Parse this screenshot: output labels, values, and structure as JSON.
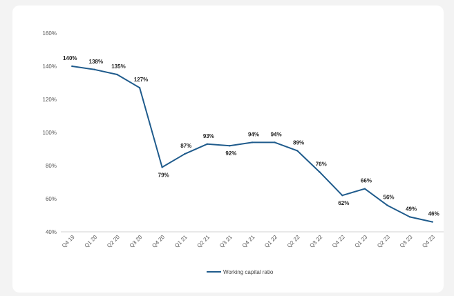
{
  "chart_data": {
    "type": "line",
    "title": "",
    "xlabel": "",
    "ylabel": "",
    "categories": [
      "Q4 19",
      "Q1 20",
      "Q2 20",
      "Q3 20",
      "Q4 20",
      "Q1 21",
      "Q2 21",
      "Q3 21",
      "Q4 21",
      "Q1 22",
      "Q2 22",
      "Q3 22",
      "Q4 22",
      "Q1 23",
      "Q2 23",
      "Q3 23",
      "Q4 23"
    ],
    "series": [
      {
        "name": "Working capital ratio",
        "values": [
          140,
          138,
          135,
          127,
          79,
          87,
          93,
          92,
          94,
          94,
          89,
          76,
          62,
          66,
          56,
          49,
          46
        ],
        "labels": [
          "140%",
          "138%",
          "135%",
          "127%",
          "79%",
          "87%",
          "93%",
          "92%",
          "94%",
          "94%",
          "89%",
          "76%",
          "62%",
          "66%",
          "56%",
          "49%",
          "46%"
        ],
        "color": "#1f5b8c"
      }
    ],
    "ylim": [
      40,
      160
    ],
    "yticks": [
      40,
      60,
      80,
      100,
      120,
      140,
      160
    ],
    "ytick_labels": [
      "40%",
      "60%",
      "80%",
      "100%",
      "120%",
      "140%",
      "160%"
    ],
    "grid": false,
    "legend": "bottom"
  }
}
